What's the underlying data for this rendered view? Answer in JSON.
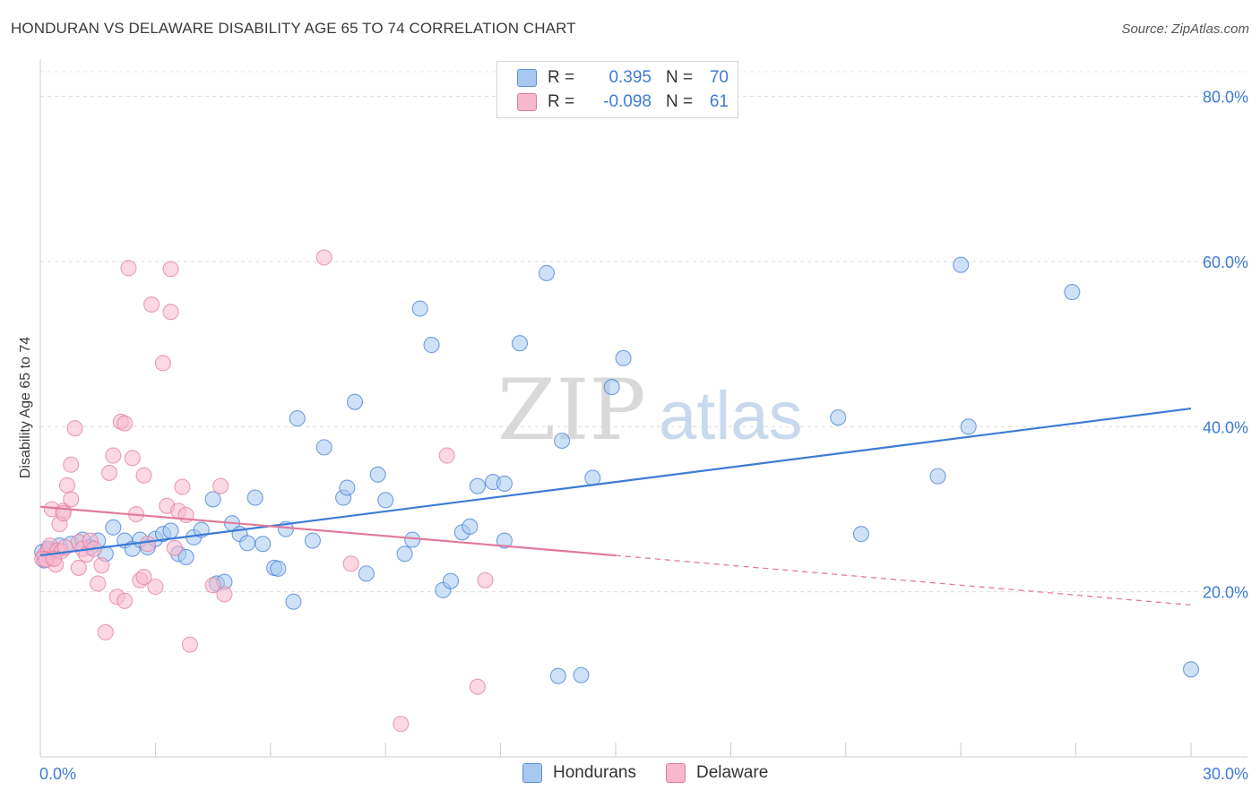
{
  "title": "HONDURAN VS DELAWARE DISABILITY AGE 65 TO 74 CORRELATION CHART",
  "source": "Source: ZipAtlas.com",
  "watermark": {
    "zip": "ZIP",
    "atlas": "atlas"
  },
  "legend": {
    "rows": [
      {
        "r_label": "R =",
        "r_value": "0.395",
        "n_label": "N =",
        "n_value": "70",
        "color": "#a8c8f0",
        "stroke": "#5a8fd8"
      },
      {
        "r_label": "R =",
        "r_value": "-0.098",
        "n_label": "N =",
        "n_value": "61",
        "color": "#f7b8cc",
        "stroke": "#e07a9c"
      }
    ]
  },
  "bottom_legend": [
    {
      "label": "Hondurans",
      "color": "#a8c8f0",
      "stroke": "#5a8fd8"
    },
    {
      "label": "Delaware",
      "color": "#f7b8cc",
      "stroke": "#e07a9c"
    }
  ],
  "chart_data": {
    "type": "scatter",
    "title": "HONDURAN VS DELAWARE DISABILITY AGE 65 TO 74 CORRELATION CHART",
    "xlabel": "",
    "ylabel": "Disability Age 65 to 74",
    "xlim": [
      0,
      30
    ],
    "ylim": [
      0,
      83
    ],
    "x_tick_labels": [
      "0.0%",
      "30.0%"
    ],
    "y_ticks": [
      20,
      40,
      60,
      80
    ],
    "y_tick_labels": [
      "20.0%",
      "40.0%",
      "60.0%",
      "80.0%"
    ],
    "grid": true,
    "series": [
      {
        "name": "Hondurans",
        "color": "#3d7bd4",
        "fill": "#a8c8f0",
        "points": [
          [
            0.1,
            23.8
          ],
          [
            0.2,
            25.2
          ],
          [
            0.3,
            24.8
          ],
          [
            0.5,
            25.6
          ],
          [
            0.8,
            25.8
          ],
          [
            1.1,
            26.3
          ],
          [
            1.3,
            25.4
          ],
          [
            1.5,
            26.2
          ],
          [
            1.7,
            24.6
          ],
          [
            1.9,
            27.8
          ],
          [
            2.2,
            26.2
          ],
          [
            2.4,
            25.2
          ],
          [
            2.6,
            26.3
          ],
          [
            2.8,
            25.4
          ],
          [
            3.0,
            26.4
          ],
          [
            3.2,
            27.0
          ],
          [
            3.4,
            27.4
          ],
          [
            3.6,
            24.6
          ],
          [
            3.8,
            24.2
          ],
          [
            4.0,
            26.6
          ],
          [
            4.2,
            27.5
          ],
          [
            4.5,
            31.2
          ],
          [
            4.6,
            21.0
          ],
          [
            4.8,
            21.2
          ],
          [
            5.0,
            28.3
          ],
          [
            5.2,
            27.0
          ],
          [
            5.4,
            25.9
          ],
          [
            5.6,
            31.4
          ],
          [
            5.8,
            25.8
          ],
          [
            6.1,
            22.9
          ],
          [
            6.2,
            22.8
          ],
          [
            6.4,
            27.6
          ],
          [
            6.6,
            18.8
          ],
          [
            6.7,
            41.0
          ],
          [
            7.1,
            26.2
          ],
          [
            7.4,
            37.5
          ],
          [
            7.9,
            31.4
          ],
          [
            8.0,
            32.6
          ],
          [
            8.2,
            43.0
          ],
          [
            8.5,
            22.2
          ],
          [
            8.8,
            34.2
          ],
          [
            9.0,
            31.1
          ],
          [
            9.5,
            24.6
          ],
          [
            9.7,
            26.3
          ],
          [
            9.9,
            54.3
          ],
          [
            10.2,
            49.9
          ],
          [
            10.5,
            20.2
          ],
          [
            10.7,
            21.3
          ],
          [
            11.0,
            27.2
          ],
          [
            11.2,
            27.9
          ],
          [
            11.4,
            32.8
          ],
          [
            11.8,
            33.3
          ],
          [
            12.1,
            26.2
          ],
          [
            12.1,
            33.1
          ],
          [
            12.5,
            50.1
          ],
          [
            13.2,
            58.6
          ],
          [
            13.5,
            9.8
          ],
          [
            13.6,
            38.3
          ],
          [
            14.1,
            9.9
          ],
          [
            14.4,
            33.8
          ],
          [
            14.9,
            44.8
          ],
          [
            15.2,
            48.3
          ],
          [
            20.8,
            41.1
          ],
          [
            21.4,
            27.0
          ],
          [
            23.4,
            34.0
          ],
          [
            24.2,
            40.0
          ],
          [
            24.0,
            59.6
          ],
          [
            26.9,
            56.3
          ],
          [
            30.0,
            10.6
          ],
          [
            0.05,
            24.8
          ]
        ],
        "trend": {
          "x": [
            0,
            30
          ],
          "y": [
            24.4,
            42.2
          ]
        }
      },
      {
        "name": "Delaware",
        "color": "#e07a9c",
        "fill": "#f7b8cc",
        "points": [
          [
            0.1,
            24.4
          ],
          [
            0.2,
            25.0
          ],
          [
            0.3,
            24.2
          ],
          [
            0.3,
            30.0
          ],
          [
            0.4,
            23.3
          ],
          [
            0.5,
            28.2
          ],
          [
            0.6,
            29.8
          ],
          [
            0.6,
            29.5
          ],
          [
            0.7,
            32.9
          ],
          [
            0.8,
            35.4
          ],
          [
            0.8,
            31.2
          ],
          [
            0.9,
            39.8
          ],
          [
            1.0,
            22.9
          ],
          [
            1.0,
            26.0
          ],
          [
            1.1,
            25.2
          ],
          [
            1.2,
            24.5
          ],
          [
            1.3,
            26.2
          ],
          [
            1.4,
            25.2
          ],
          [
            1.5,
            21.0
          ],
          [
            1.6,
            23.2
          ],
          [
            1.7,
            15.1
          ],
          [
            1.8,
            34.4
          ],
          [
            1.9,
            36.5
          ],
          [
            2.0,
            19.4
          ],
          [
            2.1,
            40.6
          ],
          [
            2.2,
            40.4
          ],
          [
            2.2,
            18.9
          ],
          [
            2.3,
            59.2
          ],
          [
            2.4,
            36.2
          ],
          [
            2.5,
            29.4
          ],
          [
            2.6,
            21.4
          ],
          [
            2.7,
            21.8
          ],
          [
            2.7,
            34.1
          ],
          [
            2.8,
            25.8
          ],
          [
            2.9,
            54.8
          ],
          [
            3.0,
            20.6
          ],
          [
            3.2,
            47.7
          ],
          [
            3.3,
            30.4
          ],
          [
            3.4,
            53.9
          ],
          [
            3.4,
            59.1
          ],
          [
            3.5,
            25.3
          ],
          [
            3.6,
            29.8
          ],
          [
            3.7,
            32.7
          ],
          [
            3.8,
            29.3
          ],
          [
            3.9,
            13.6
          ],
          [
            4.5,
            20.8
          ],
          [
            4.7,
            32.8
          ],
          [
            4.8,
            19.7
          ],
          [
            7.4,
            60.5
          ],
          [
            8.1,
            23.4
          ],
          [
            9.4,
            4.0
          ],
          [
            10.6,
            36.5
          ],
          [
            11.4,
            8.5
          ],
          [
            11.6,
            21.4
          ],
          [
            0.05,
            24.0
          ],
          [
            0.15,
            23.9
          ],
          [
            0.25,
            25.6
          ],
          [
            0.45,
            25.0
          ],
          [
            0.55,
            24.9
          ],
          [
            0.35,
            24.0
          ],
          [
            0.65,
            25.4
          ]
        ],
        "trend": {
          "x": [
            0,
            15
          ],
          "y": [
            30.3,
            24.4
          ]
        },
        "trend_dashed": {
          "x": [
            15,
            30
          ],
          "y": [
            24.4,
            18.4
          ]
        }
      }
    ]
  }
}
